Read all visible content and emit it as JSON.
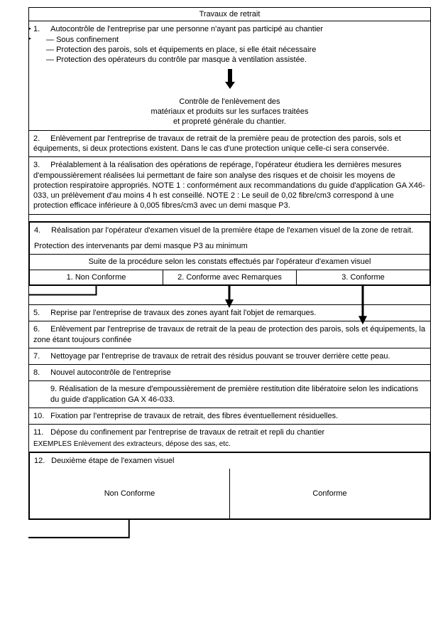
{
  "title": "Travaux de retrait",
  "s1": {
    "num": "1.",
    "main": "Autocontrôle de l'entreprise par une personne n'ayant pas participé au chantier",
    "b1": "Sous confinement",
    "b2": "Protection des parois, sols et équipements en place, si elle était nécessaire",
    "b3": "Protection des opérateurs du contrôle par masque à ventilation assistée.",
    "c1": "Contrôle de l'enlèvement des",
    "c2": "matériaux et produits sur les surfaces traitées",
    "c3": "et propreté générale du chantier."
  },
  "s2": {
    "num": "2.",
    "text": "Enlèvement par l'entreprise de travaux de retrait de la première peau de protection des parois, sols et équipements, si deux protections existent. Dans le cas d'une protection unique celle-ci sera conservée."
  },
  "s3": {
    "num": "3.",
    "text": "Préalablement à la réalisation des opérations de repérage, l'opérateur étudiera les dernières mesures d'empoussièrement réalisées lui permettant de faire son analyse des risques et de choisir les moyens de protection respiratoire appropriés. NOTE 1 : conformément aux recommandations du guide d'application GA X46-033, un prélèvement d'au moins 4 h est conseillé. NOTE 2 : Le seuil de 0,02 fibre/cm3 correspond à une protection efficace inférieure à 0,005 fibres/cm3 avec un demi masque P3."
  },
  "s4": {
    "num": "4.",
    "main": "Réalisation par l'opérateur d'examen visuel de la première étape de l'examen visuel de la zone de retrait.",
    "p2": "Protection des intervenants par demi masque P3 au minimum",
    "header": "Suite de la procédure selon les constats effectués par l'opérateur d'examen visuel",
    "c1": "1. Non Conforme",
    "c2": "2. Conforme avec Remarques",
    "c3": "3. Conforme"
  },
  "s5": {
    "num": "5.",
    "text": "Reprise par l'entreprise de travaux des zones ayant fait l'objet de  remarques."
  },
  "s6": {
    "num": "6.",
    "text": "Enlèvement par l'entreprise de travaux de retrait de la peau de protection des parois, sols et équipements, la zone étant toujours confinée"
  },
  "s7": {
    "num": "7.",
    "text": "Nettoyage par l'entreprise de travaux de retrait des résidus pouvant se trouver derrière cette peau."
  },
  "s8": {
    "num": "8.",
    "text": "Nouvel autocontrôle de l'entreprise"
  },
  "s9": {
    "text": "9. Réalisation de la mesure d'empoussièrement  de première restitution dite libératoire selon les indications du guide d'application GA X 46-033."
  },
  "s10": {
    "num": "10.",
    "text": "Fixation par l'entreprise de travaux de retrait, des fibres éventuellement résiduelles."
  },
  "s11": {
    "num": "11.",
    "text": "Dépose du confinement par l'entreprise de travaux de retrait et repli du chantier",
    "ex": "EXEMPLES  Enlèvement des extracteurs, dépose des sas, etc."
  },
  "s12": {
    "num": "12.",
    "text": "Deuxième étape de l'examen visuel",
    "nc": "Non Conforme",
    "c": "Conforme"
  },
  "colors": {
    "line": "#000000",
    "bg": "#ffffff"
  }
}
